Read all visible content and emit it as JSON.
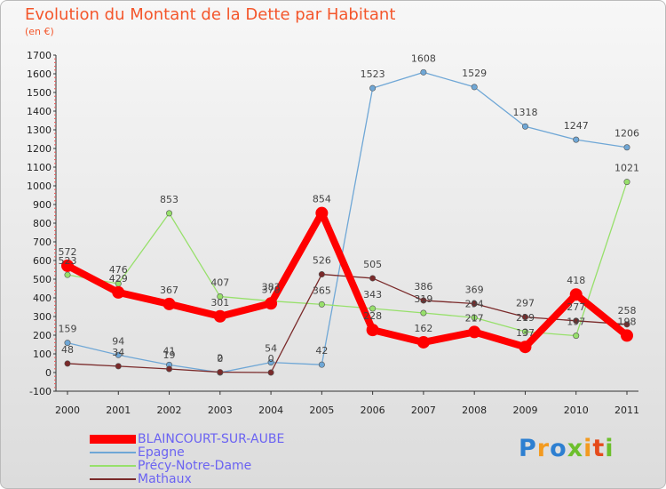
{
  "title": "Evolution du Montant de la Dette par Habitant",
  "subtitle": "(en €)",
  "logo_text": "Proxiti",
  "chart_data": {
    "type": "line",
    "title": "Evolution du Montant de la Dette par Habitant",
    "subtitle": "(en €)",
    "xlabel": "",
    "ylabel": "",
    "x": [
      "2000",
      "2001",
      "2002",
      "2003",
      "2004",
      "2005",
      "2006",
      "2007",
      "2008",
      "2009",
      "2010",
      "2011"
    ],
    "ylim": [
      -100,
      1700
    ],
    "yticks": [
      -100,
      0,
      100,
      200,
      300,
      400,
      500,
      600,
      700,
      800,
      900,
      1000,
      1100,
      1200,
      1300,
      1400,
      1500,
      1600,
      1700
    ],
    "grid": false,
    "legend": "bottom-left",
    "series": [
      {
        "name": "BLAINCOURT-SUR-AUBE",
        "color": "#ff0000",
        "values": [
          572,
          429,
          367,
          301,
          370,
          854,
          228,
          162,
          217,
          137,
          418,
          198
        ]
      },
      {
        "name": "Epagne",
        "color": "#6fa7d6",
        "values": [
          159,
          94,
          41,
          0,
          54,
          42,
          1523,
          1608,
          1529,
          1318,
          1247,
          1206
        ]
      },
      {
        "name": "Précy-Notre-Dame",
        "color": "#97e06b",
        "values": [
          523,
          476,
          853,
          407,
          383,
          365,
          343,
          319,
          294,
          219,
          197,
          1021
        ]
      },
      {
        "name": "Mathaux",
        "color": "#7a2a2a",
        "values": [
          48,
          34,
          19,
          2,
          0,
          526,
          505,
          386,
          369,
          297,
          277,
          258
        ]
      }
    ]
  }
}
